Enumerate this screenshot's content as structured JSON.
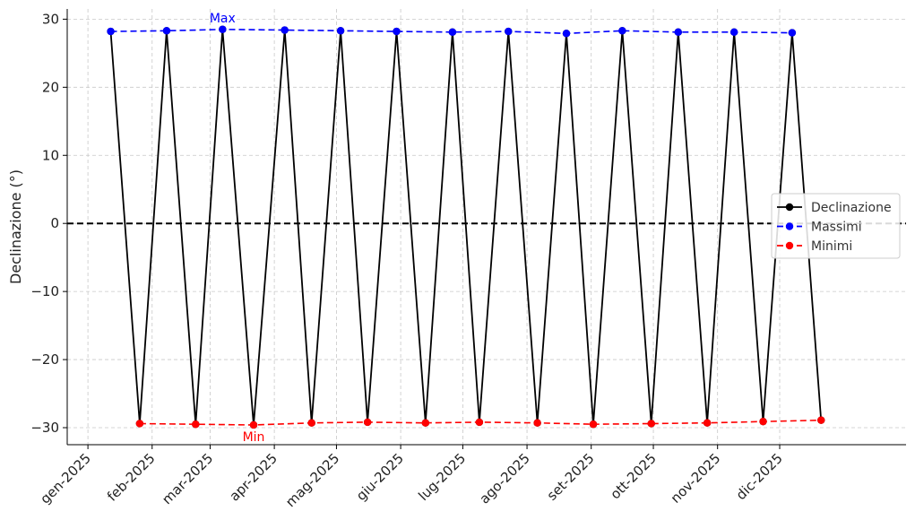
{
  "chart_data": {
    "type": "line",
    "title": "",
    "xlabel": "",
    "ylabel": "Declinazione (°)",
    "ylim": [
      -32.5,
      31.5
    ],
    "xlim": [
      "2024-12-22",
      "2026-01-31"
    ],
    "grid": true,
    "legend_position": "center-right",
    "x_ticks": [
      "2025-01-01",
      "2025-02-01",
      "2025-03-01",
      "2025-04-01",
      "2025-05-01",
      "2025-06-01",
      "2025-07-01",
      "2025-08-01",
      "2025-09-01",
      "2025-10-01",
      "2025-11-01",
      "2025-12-01"
    ],
    "x_tick_labels": [
      "gen-2025",
      "feb-2025",
      "mar-2025",
      "apr-2025",
      "mag-2025",
      "giu-2025",
      "lug-2025",
      "ago-2025",
      "set-2025",
      "ott-2025",
      "nov-2025",
      "dic-2025"
    ],
    "y_ticks": [
      -30,
      -20,
      -10,
      0,
      10,
      20,
      30
    ],
    "y_tick_labels": [
      "−30",
      "−20",
      "−10",
      "0",
      "10",
      "20",
      "30"
    ],
    "reference_line": {
      "y": 0,
      "style": "dashed",
      "color": "#000000"
    },
    "series": [
      {
        "name": "Declinazione",
        "color": "#000000",
        "style": "solid",
        "x": [
          "2025-01-12",
          "2025-01-26",
          "2025-02-08",
          "2025-02-22",
          "2025-03-07",
          "2025-03-22",
          "2025-04-06",
          "2025-04-19",
          "2025-05-03",
          "2025-05-16",
          "2025-05-30",
          "2025-06-13",
          "2025-06-26",
          "2025-07-09",
          "2025-07-23",
          "2025-08-06",
          "2025-08-20",
          "2025-09-02",
          "2025-09-16",
          "2025-09-30",
          "2025-10-13",
          "2025-10-27",
          "2025-11-09",
          "2025-11-23",
          "2025-12-07",
          "2025-12-21"
        ],
        "values": [
          28.2,
          -29.4,
          28.3,
          -29.5,
          28.5,
          -29.6,
          28.4,
          -29.3,
          28.3,
          -29.2,
          28.2,
          -29.3,
          28.1,
          -29.2,
          28.2,
          -29.3,
          27.9,
          -29.5,
          28.3,
          -29.4,
          28.1,
          -29.3,
          28.1,
          -29.1,
          28.0,
          -28.9
        ]
      },
      {
        "name": "Massimi",
        "color": "#0000ff",
        "style": "dashed",
        "x": [
          "2025-01-12",
          "2025-02-08",
          "2025-03-07",
          "2025-04-06",
          "2025-05-03",
          "2025-05-30",
          "2025-06-26",
          "2025-07-23",
          "2025-08-20",
          "2025-09-16",
          "2025-10-13",
          "2025-11-09",
          "2025-12-07"
        ],
        "values": [
          28.2,
          28.3,
          28.5,
          28.4,
          28.3,
          28.2,
          28.1,
          28.2,
          27.9,
          28.3,
          28.1,
          28.1,
          28.0
        ]
      },
      {
        "name": "Minimi",
        "color": "#ff0000",
        "style": "dashed",
        "x": [
          "2025-01-26",
          "2025-02-22",
          "2025-03-22",
          "2025-04-19",
          "2025-05-16",
          "2025-06-13",
          "2025-07-09",
          "2025-08-06",
          "2025-09-02",
          "2025-09-30",
          "2025-10-27",
          "2025-11-23",
          "2025-12-21"
        ],
        "values": [
          -29.4,
          -29.5,
          -29.6,
          -29.3,
          -29.2,
          -29.3,
          -29.2,
          -29.3,
          -29.5,
          -29.4,
          -29.3,
          -29.1,
          -28.9
        ]
      }
    ],
    "annotations": [
      {
        "text": "Max",
        "x": "2025-03-07",
        "y": 28.5,
        "color": "#0000ff",
        "position": "above"
      },
      {
        "text": "Min",
        "x": "2025-03-22",
        "y": -29.6,
        "color": "#ff0000",
        "position": "below"
      }
    ]
  }
}
